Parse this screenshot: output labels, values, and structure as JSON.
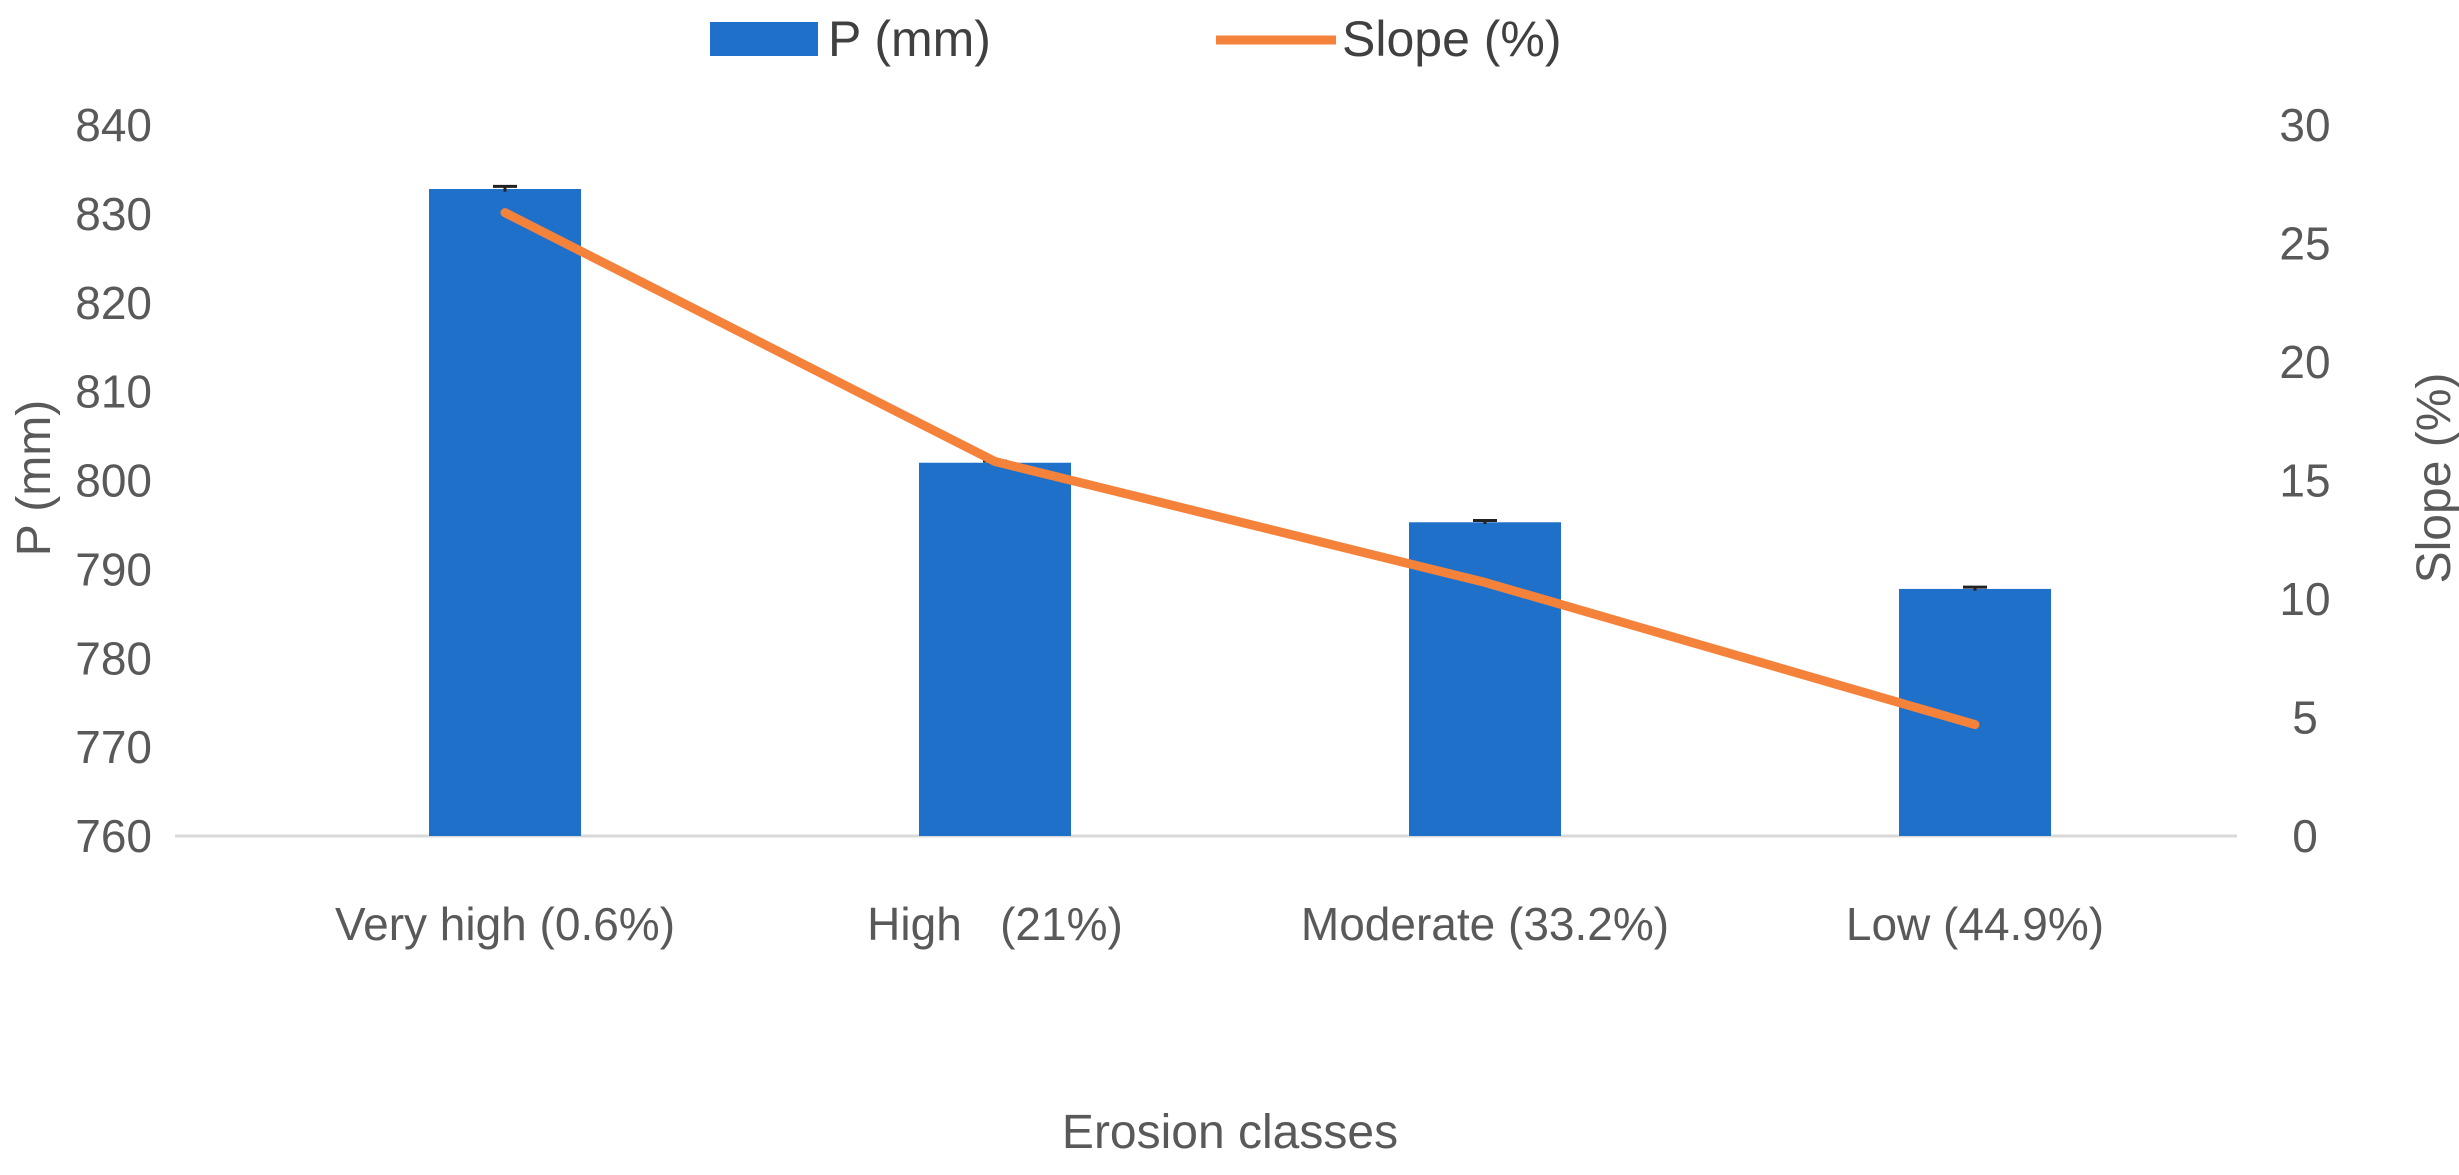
{
  "chart_data": {
    "type": "bar",
    "title": "",
    "xlabel": "Erosion classes",
    "ylabel": "P (mm)",
    "y2label": "Slope (%)",
    "categories": [
      "Very high (0.6%)",
      "High   (21%)",
      "Moderate (33.2%)",
      "Low (44.9%)"
    ],
    "ylim": [
      760,
      840
    ],
    "yticks": [
      "760",
      "770",
      "780",
      "790",
      "800",
      "810",
      "820",
      "830",
      "840"
    ],
    "y2lim": [
      0,
      30
    ],
    "y2ticks": [
      "0",
      "5",
      "10",
      "15",
      "20",
      "25",
      "30"
    ],
    "series": [
      {
        "name": "P (mm)",
        "type": "bar",
        "axis": "left",
        "color": "#1f70c9",
        "values": [
          832.8,
          802,
          795.3,
          787.8
        ],
        "error": [
          0.3,
          0.2,
          0.2,
          0.2
        ]
      },
      {
        "name": "Slope (%)",
        "type": "line",
        "axis": "right",
        "color": "#f5823a",
        "values": [
          26.3,
          15.8,
          10.7,
          4.7
        ]
      }
    ],
    "grid": false,
    "legend": "top-center"
  }
}
